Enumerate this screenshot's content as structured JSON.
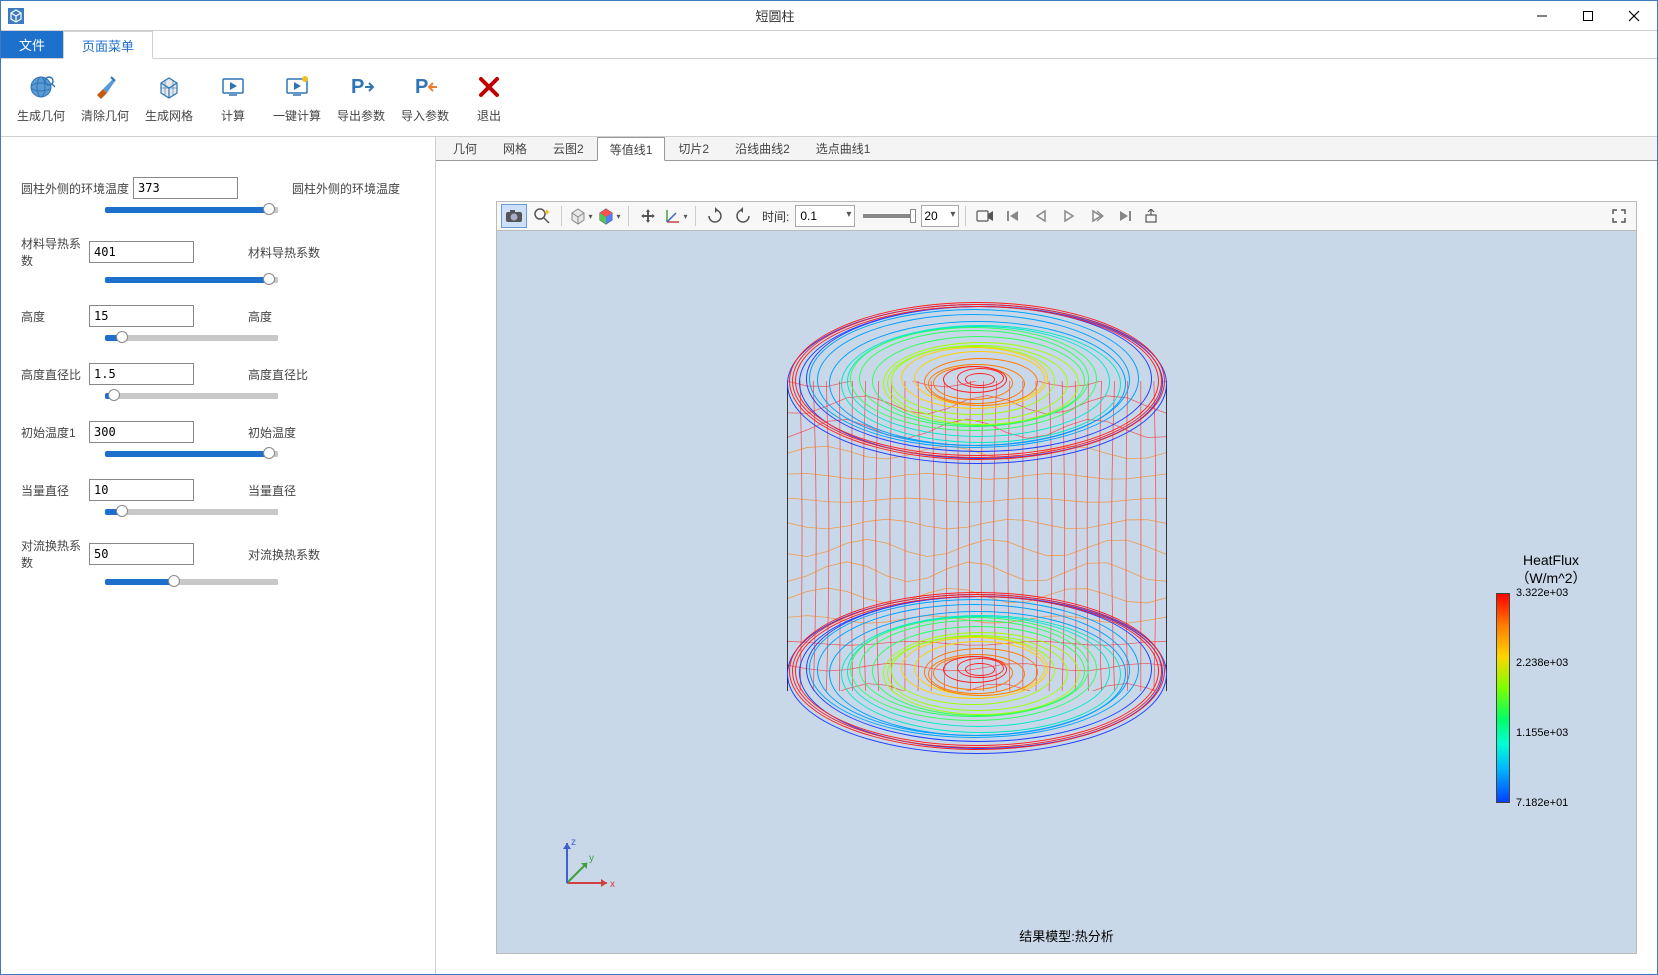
{
  "window": {
    "title": "短圆柱"
  },
  "menuTabs": {
    "file": "文件",
    "page": "页面菜单"
  },
  "ribbon": [
    {
      "id": "gen-geom",
      "label": "生成几何",
      "icon": "sphere"
    },
    {
      "id": "clear-geom",
      "label": "清除几何",
      "icon": "brush"
    },
    {
      "id": "gen-mesh",
      "label": "生成网格",
      "icon": "cube"
    },
    {
      "id": "calc",
      "label": "计算",
      "icon": "play"
    },
    {
      "id": "one-calc",
      "label": "一键计算",
      "icon": "play2"
    },
    {
      "id": "export",
      "label": "导出参数",
      "icon": "p-out"
    },
    {
      "id": "import",
      "label": "导入参数",
      "icon": "p-in"
    },
    {
      "id": "exit",
      "label": "退出",
      "icon": "x"
    }
  ],
  "params": [
    {
      "id": "env-temp",
      "label": "圆柱外侧的环境温度",
      "short": "",
      "value": "373",
      "desc": "圆柱外侧的环境温度",
      "slider": 0.95
    },
    {
      "id": "conductivity",
      "label": "材料导热系数",
      "short": "",
      "value": "401",
      "desc": "材料导热系数",
      "slider": 0.95
    },
    {
      "id": "height",
      "label": "高度",
      "short": "",
      "value": "15",
      "desc": "高度",
      "slider": 0.1
    },
    {
      "id": "aspect",
      "label": "高度直径比",
      "short": "",
      "value": "1.5",
      "desc": "高度直径比",
      "slider": 0.05
    },
    {
      "id": "init-temp",
      "label": "初始温度1",
      "short": "",
      "value": "300",
      "desc": "初始温度",
      "slider": 0.95
    },
    {
      "id": "diameter",
      "label": "当量直径",
      "short": "",
      "value": "10",
      "desc": "当量直径",
      "slider": 0.1
    },
    {
      "id": "conv-coef",
      "label": "对流换热系数",
      "short": "",
      "value": "50",
      "desc": "对流换热系数",
      "slider": 0.4
    }
  ],
  "viewTabs": [
    {
      "id": "geom",
      "label": "几何",
      "active": false
    },
    {
      "id": "mesh",
      "label": "网格",
      "active": false
    },
    {
      "id": "cloud2",
      "label": "云图2",
      "active": false
    },
    {
      "id": "contour1",
      "label": "等值线1",
      "active": true
    },
    {
      "id": "slice2",
      "label": "切片2",
      "active": false
    },
    {
      "id": "alongline2",
      "label": "沿线曲线2",
      "active": false
    },
    {
      "id": "pickpoint1",
      "label": "选点曲线1",
      "active": false
    }
  ],
  "viewToolbar": {
    "timeLabel": "时间:",
    "timeValue": "0.1",
    "levelValue": "20"
  },
  "colorbar": {
    "title1": "HeatFlux",
    "title2": "（W/m^2）",
    "ticks": [
      {
        "pos": 0.0,
        "label": "3.322e+03"
      },
      {
        "pos": 0.333,
        "label": "2.238e+03"
      },
      {
        "pos": 0.667,
        "label": "1.155e+03"
      },
      {
        "pos": 1.0,
        "label": "7.182e+01"
      }
    ]
  },
  "footerLabel": "结果模型:热分析",
  "axis": {
    "x": "x",
    "y": "y",
    "z": "z"
  },
  "colors": {
    "accent": "#1e70cd",
    "viewport_bg": "#c9d8e8",
    "contour_rings": [
      "#ff2020",
      "#ff7b00",
      "#ffd000",
      "#a0ff00",
      "#30ff60",
      "#00e8c8",
      "#00a0ff",
      "#2040ff"
    ]
  }
}
